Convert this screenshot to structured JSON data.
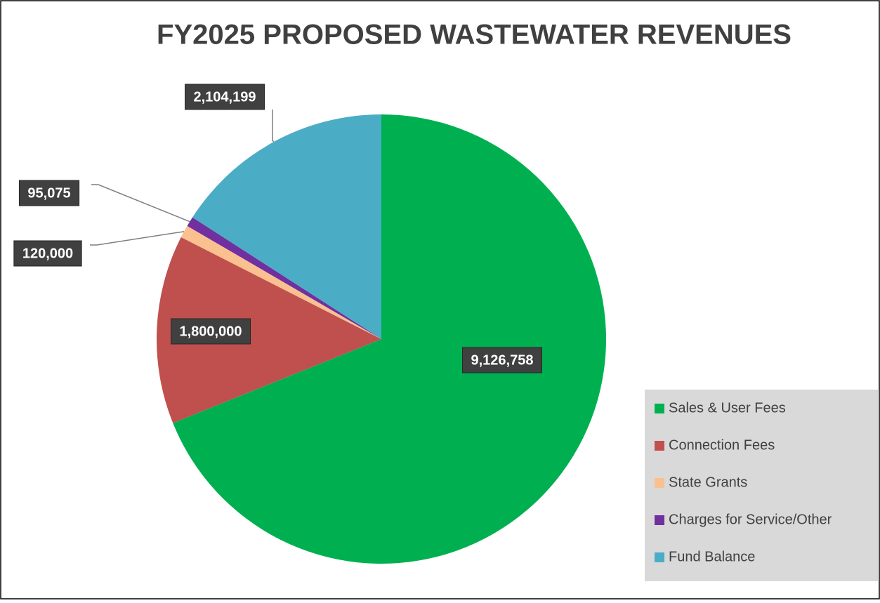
{
  "chart_data": {
    "type": "pie",
    "title": "FY2025 PROPOSED WASTEWATER REVENUES",
    "categories": [
      "Sales & User Fees",
      "Connection Fees",
      "State Grants",
      "Charges for Service/Other",
      "Fund Balance"
    ],
    "values": [
      9126758,
      1800000,
      120000,
      95075,
      2104199
    ],
    "value_labels": [
      "9,126,758",
      "1,800,000",
      "120,000",
      "95,075",
      "2,104,199"
    ],
    "colors": [
      "#00b050",
      "#c0504d",
      "#fac090",
      "#7030a0",
      "#4bacc6"
    ],
    "legend": "bottom-right"
  }
}
